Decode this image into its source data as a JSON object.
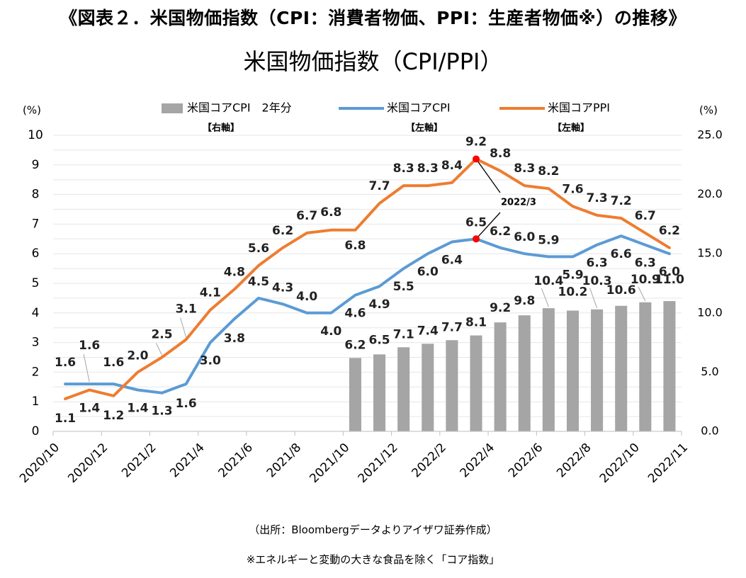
{
  "heading": "《図表２．米国物価指数（CPI：消費者物価、PPI：生産者物価※）の推移》",
  "source_text": "（出所：Bloombergデータよりアイザワ証券作成）",
  "note_text": "※エネルギーと変動の大きな食品を除く「コア指数」",
  "chart_data": {
    "type": "bar+line",
    "title": "米国物価指数（CPI/PPI）",
    "categories": [
      "2020/10",
      "2020/11",
      "2020/12",
      "2021/1",
      "2021/2",
      "2021/3",
      "2021/4",
      "2021/5",
      "2021/6",
      "2021/7",
      "2021/8",
      "2021/9",
      "2021/10",
      "2021/11",
      "2021/12",
      "2022/1",
      "2022/2",
      "2022/3",
      "2022/4",
      "2022/5",
      "2022/6",
      "2022/7",
      "2022/8",
      "2022/9",
      "2022/10",
      "2022/11"
    ],
    "x_tick_labels": [
      "2020/10",
      "2020/12",
      "2021/2",
      "2021/4",
      "2021/6",
      "2021/8",
      "2021/10",
      "2021/12",
      "2022/2",
      "2022/4",
      "2022/6",
      "2022/8",
      "2022/10",
      "2022/11"
    ],
    "left_axis": {
      "unit": "(%)",
      "min": 0,
      "max": 10,
      "step": 1,
      "ticks": [
        "0",
        "1",
        "2",
        "3",
        "4",
        "5",
        "6",
        "7",
        "8",
        "9",
        "10"
      ]
    },
    "right_axis": {
      "unit": "(%)",
      "min": 0,
      "max": 25,
      "step": 5,
      "ticks": [
        "0.0",
        "5.0",
        "10.0",
        "15.0",
        "20.0",
        "25.0"
      ]
    },
    "series": [
      {
        "name": "米国コアCPI　2年分",
        "type": "bar",
        "axis": "right",
        "axis_note": "【右軸】",
        "color": "#a5a5a5",
        "values": [
          null,
          null,
          null,
          null,
          null,
          null,
          null,
          null,
          null,
          null,
          null,
          null,
          6.2,
          6.5,
          7.1,
          7.4,
          7.7,
          8.1,
          9.2,
          9.8,
          10.4,
          10.2,
          10.3,
          10.6,
          10.9,
          11.0
        ],
        "labels": [
          "",
          "",
          "",
          "",
          "",
          "",
          "",
          "",
          "",
          "",
          "",
          "",
          "6.2",
          "6.5",
          "7.1",
          "7.4",
          "7.7",
          "8.1",
          "9.2",
          "9.8",
          "10.4",
          "10.2",
          "10.3",
          "10.6",
          "10.9",
          "11.0"
        ]
      },
      {
        "name": "米国コアCPI",
        "type": "line",
        "axis": "left",
        "axis_note": "【左軸】",
        "color": "#5b9bd5",
        "values": [
          1.6,
          1.6,
          1.6,
          1.4,
          1.3,
          1.6,
          3.0,
          3.8,
          4.5,
          4.3,
          4.0,
          4.0,
          4.6,
          4.9,
          5.5,
          6.0,
          6.4,
          6.5,
          6.2,
          6.0,
          5.9,
          5.9,
          6.3,
          6.6,
          6.3,
          6.0
        ],
        "labels": [
          "1.6",
          "1.6",
          "1.6",
          "1.4",
          "1.3",
          "1.6",
          "3.0",
          "3.8",
          "4.5",
          "4.3",
          "4.0",
          "4.0",
          "4.6",
          "4.9",
          "5.5",
          "6.0",
          "6.4",
          "6.5",
          "6.2",
          "6.0",
          "5.9",
          "5.9",
          "6.3",
          "6.6",
          "6.3",
          "6.0"
        ]
      },
      {
        "name": "米国コアPPI",
        "type": "line",
        "axis": "left",
        "axis_note": "【左軸】",
        "color": "#ed7d31",
        "values": [
          1.1,
          1.4,
          1.2,
          2.0,
          2.5,
          3.1,
          4.1,
          4.8,
          5.6,
          6.2,
          6.7,
          6.8,
          6.8,
          7.7,
          8.3,
          8.3,
          8.4,
          9.2,
          8.8,
          8.3,
          8.2,
          7.6,
          7.3,
          7.2,
          6.7,
          6.2
        ],
        "labels": [
          "1.1",
          "1.4",
          "1.2",
          "2.0",
          "2.5",
          "3.1",
          "4.1",
          "4.8",
          "5.6",
          "6.2",
          "6.7",
          "6.8",
          "6.8",
          "7.7",
          "8.3",
          "8.3",
          "8.4",
          "9.2",
          "8.8",
          "8.3",
          "8.2",
          "7.6",
          "7.3",
          "7.2",
          "6.7",
          "6.2"
        ]
      }
    ],
    "annotation": {
      "text": "2022/3",
      "category": "2022/3",
      "marker_color": "#ff0000"
    },
    "grid": true,
    "legend": "top"
  }
}
